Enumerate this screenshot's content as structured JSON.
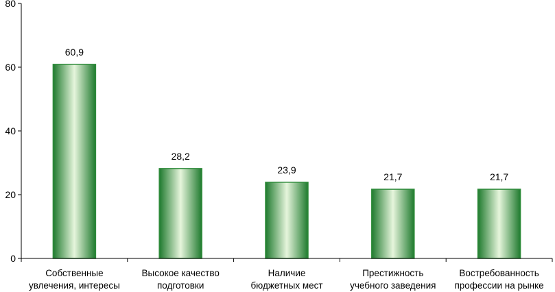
{
  "chart_data": {
    "type": "bar",
    "categories": [
      [
        "Собственные",
        "увлечения, интересы"
      ],
      [
        "Высокое качество",
        "подготовки"
      ],
      [
        "Наличие",
        "бюджетных мест"
      ],
      [
        "Престижность",
        "учебного заведения"
      ],
      [
        "Востребованность",
        "профессии на рынке"
      ]
    ],
    "values": [
      60.9,
      28.2,
      23.9,
      21.7,
      21.7
    ],
    "value_labels": [
      "60,9",
      "28,2",
      "23,9",
      "21,7",
      "21,7"
    ],
    "ylim": [
      0,
      80
    ],
    "yticks": [
      0,
      20,
      40,
      60,
      80
    ],
    "ytick_labels": [
      "0",
      "20",
      "40",
      "60",
      "80"
    ],
    "grid": false,
    "colors": {
      "bar_edge": "#2e8b3a",
      "bar_dark": "#1f7a2e",
      "bar_light": "#e6f5dc",
      "axis": "#000000"
    }
  }
}
